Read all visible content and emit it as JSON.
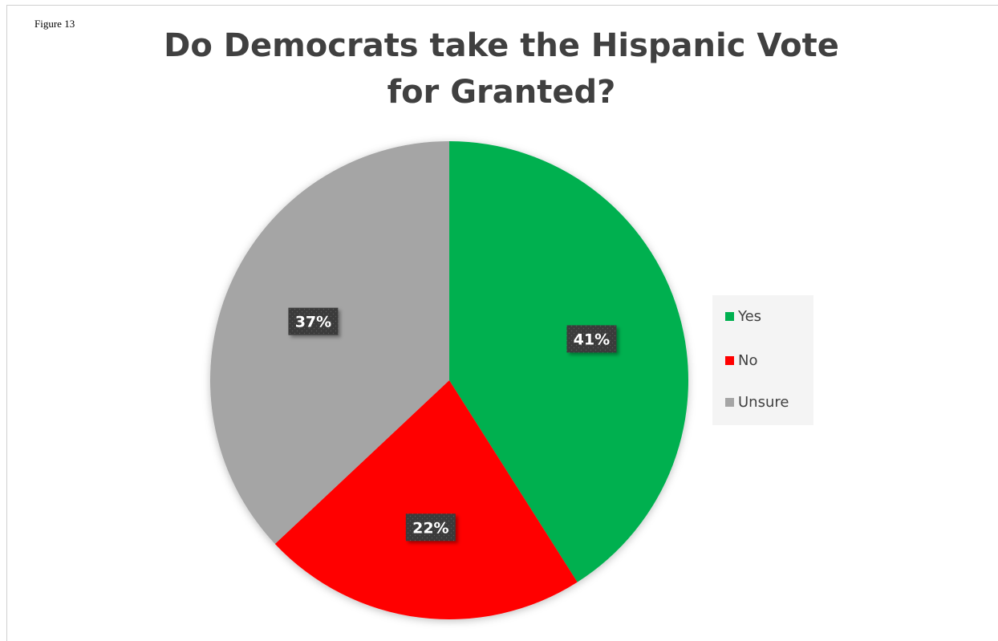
{
  "figure_label": "Figure 13",
  "chart_data": {
    "type": "pie",
    "title": "Do Democrats take the Hispanic Vote for Granted?",
    "categories": [
      "Yes",
      "No",
      "Unsure"
    ],
    "values": [
      41,
      22,
      37
    ],
    "data_labels": [
      "41%",
      "22%",
      "37%"
    ],
    "colors": [
      "#00b050",
      "#ff0000",
      "#a5a5a5"
    ],
    "start_angle": "12 o'clock, clockwise",
    "legend_position": "right"
  }
}
